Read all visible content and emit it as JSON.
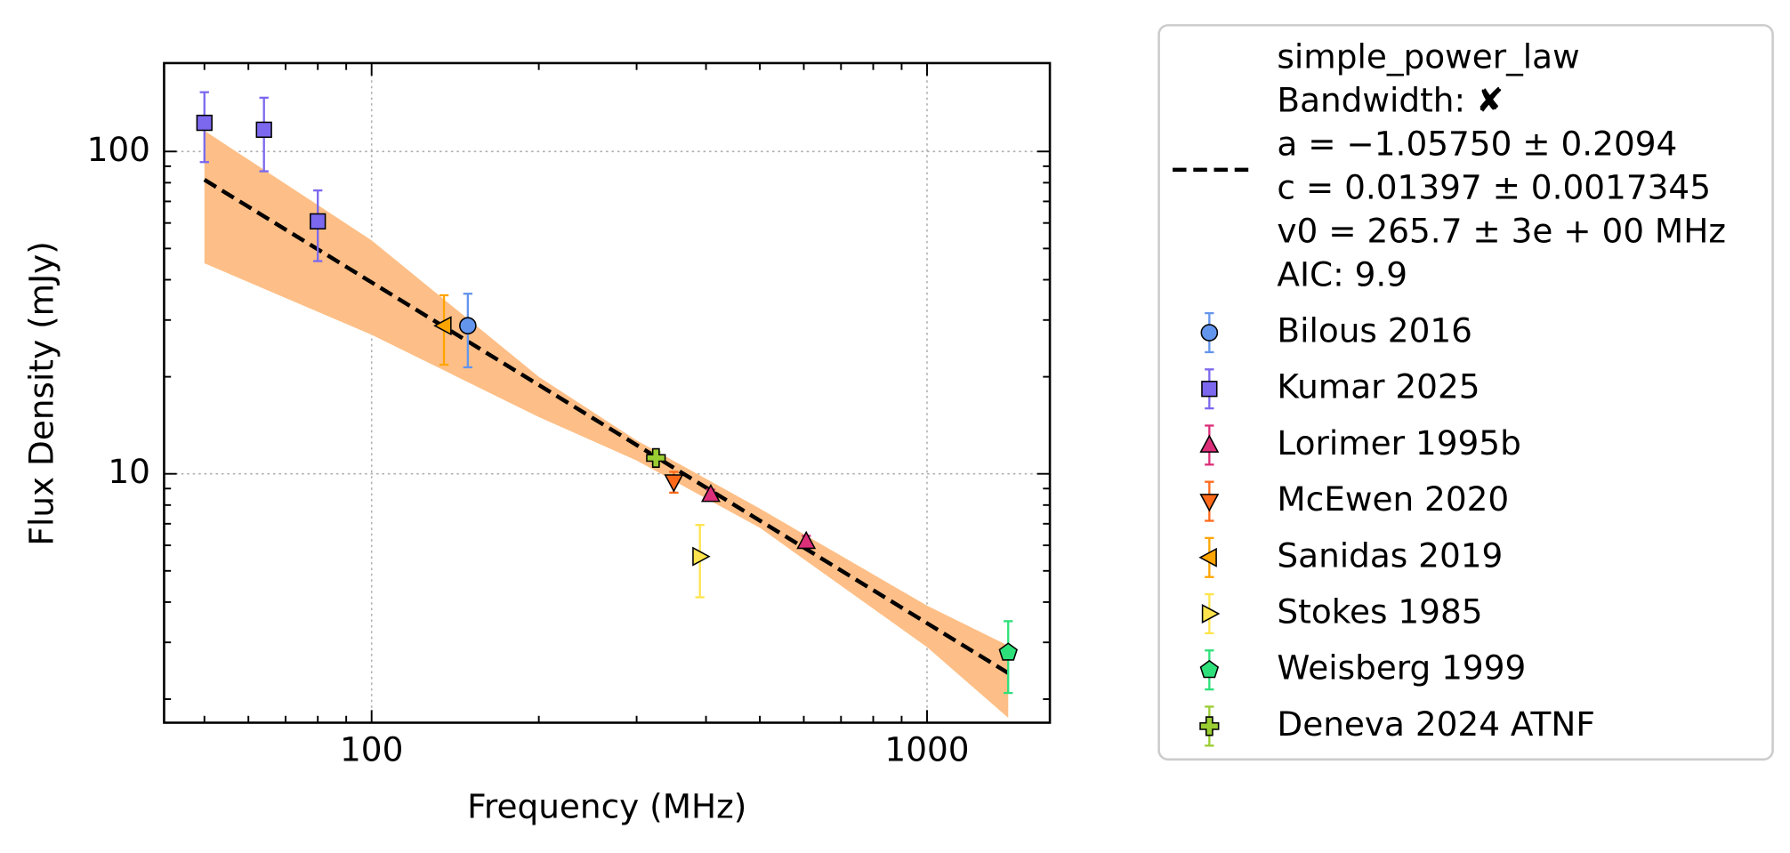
{
  "chart_data": {
    "type": "scatter",
    "xlabel": "Frequency (MHz)",
    "ylabel": "Flux Density (mJy)",
    "xscale": "log",
    "yscale": "log",
    "grid": true,
    "xlim": [
      42.3,
      1664
    ],
    "ylim": [
      1.69,
      188
    ],
    "xticks": [
      100,
      1000
    ],
    "yticks": [
      10,
      100
    ],
    "xminorticks": [
      50,
      60,
      70,
      80,
      90,
      200,
      300,
      400,
      500,
      600,
      700,
      800,
      900
    ],
    "yminorticks": [
      2,
      3,
      4,
      5,
      6,
      7,
      8,
      9,
      20,
      30,
      40,
      50,
      60,
      70,
      80,
      90
    ],
    "legend": "outside-right",
    "fit": {
      "label_lines": [
        "simple_power_law",
        "Bandwidth: ✘",
        "a = −1.05750 ± 0.2094",
        "c = 0.01397 ± 0.0017345",
        "v0 = 265.7 ± 3e + 00 MHz",
        "AIC: 9.9"
      ],
      "color": "#000000",
      "x": [
        50,
        1400
      ],
      "values": [
        81.7,
        2.41
      ],
      "band": {
        "color": "#fdbf87",
        "x": [
          50,
          100,
          200,
          300,
          500,
          1000,
          1400
        ],
        "upper": [
          116,
          53,
          20,
          12.7,
          7.8,
          3.9,
          2.93
        ],
        "lower": [
          45,
          27,
          15,
          11.0,
          6.8,
          2.9,
          1.75
        ]
      }
    },
    "series": [
      {
        "name": "Bilous 2016",
        "marker": "circle",
        "color": "#6495ed",
        "x": [
          149
        ],
        "values": [
          28.8
        ],
        "errors": [
          7.4
        ]
      },
      {
        "name": "Kumar 2025",
        "marker": "square",
        "color": "#7b68ee",
        "x": [
          50,
          64,
          80
        ],
        "values": [
          122.7,
          116.8,
          60.7
        ],
        "errors": [
          30,
          30,
          15
        ]
      },
      {
        "name": "Lorimer 1995b",
        "marker": "triangle-up",
        "color": "#dc2f7a",
        "x": [
          408,
          606
        ],
        "values": [
          8.63,
          6.17
        ],
        "errors": [
          0.3,
          0.25
        ]
      },
      {
        "name": "McEwen 2020",
        "marker": "triangle-down",
        "color": "#ff6a1a",
        "x": [
          350
        ],
        "values": [
          9.44
        ],
        "errors": [
          0.7
        ]
      },
      {
        "name": "Sanidas 2019",
        "marker": "triangle-left",
        "color": "#ffa500",
        "x": [
          135
        ],
        "values": [
          28.8
        ],
        "errors": [
          7
        ]
      },
      {
        "name": "Stokes 1985",
        "marker": "triangle-right",
        "color": "#ffe44d",
        "x": [
          390
        ],
        "values": [
          5.54
        ],
        "errors": [
          1.4
        ]
      },
      {
        "name": "Weisberg 1999",
        "marker": "pentagon",
        "color": "#2ee07a",
        "x": [
          1400
        ],
        "values": [
          2.79
        ],
        "errors": [
          0.7
        ]
      },
      {
        "name": "Deneva 2024 ATNF",
        "marker": "plus",
        "color": "#9acd32",
        "x": [
          325
        ],
        "values": [
          11.2
        ],
        "errors": [
          0.5
        ]
      }
    ]
  }
}
